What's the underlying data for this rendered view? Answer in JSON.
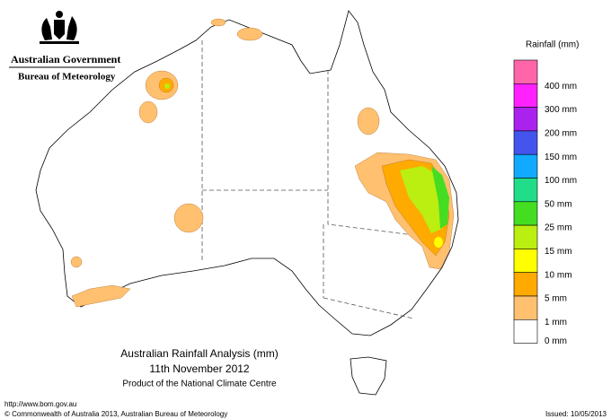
{
  "header": {
    "government": "Australian Government",
    "agency": "Bureau of Meteorology"
  },
  "legend": {
    "title": "Rainfall (mm)",
    "colors": [
      "#ff66aa",
      "#ff22ff",
      "#aa22ee",
      "#4455ee",
      "#11aaff",
      "#22dd88",
      "#44dd22",
      "#bbee11",
      "#ffff00",
      "#ffaa00",
      "#ffc070",
      "#ffffff"
    ],
    "labels": [
      "400 mm",
      "300 mm",
      "200 mm",
      "150 mm",
      "100 mm",
      "50 mm",
      "25 mm",
      "15 mm",
      "10 mm",
      "5 mm",
      "1 mm",
      "0 mm"
    ]
  },
  "map": {
    "title": "Australian Rainfall Analysis (mm)",
    "date": "11th November 2012",
    "product": "Product of the National Climate Centre"
  },
  "footer": {
    "url": "http://www.bom.gov.au",
    "copyright": "© Commonwealth of Australia 2013, Australian Bureau of Meteorology",
    "issued": "Issued: 10/05/2013"
  }
}
